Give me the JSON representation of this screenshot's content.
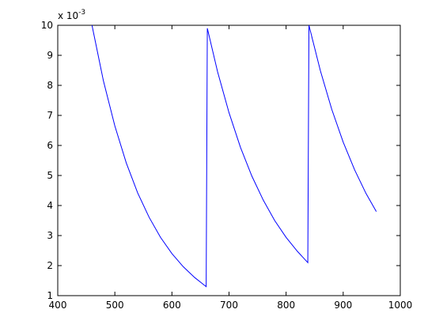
{
  "chart_data": {
    "type": "line",
    "y_multiplier": "x 10",
    "y_multiplier_exponent": "-3",
    "x": [
      460,
      480,
      500,
      520,
      540,
      560,
      580,
      600,
      620,
      640,
      660,
      661,
      662,
      680,
      700,
      720,
      740,
      760,
      780,
      800,
      820,
      838,
      840,
      860,
      880,
      900,
      920,
      940,
      958
    ],
    "series": [
      {
        "color": "#0000ff",
        "values": [
          10,
          8.15,
          6.65,
          5.42,
          4.42,
          3.61,
          2.94,
          2.4,
          1.96,
          1.6,
          1.3,
          5.6,
          9.9,
          8.45,
          7.09,
          5.94,
          4.98,
          4.18,
          3.5,
          2.94,
          2.47,
          2.1,
          10,
          8.49,
          7.2,
          6.11,
          5.19,
          4.4,
          3.8
        ]
      }
    ],
    "xlim": [
      400,
      1000
    ],
    "xticks": [
      400,
      500,
      600,
      700,
      800,
      900,
      1000
    ],
    "ylim": [
      1,
      10
    ],
    "yticks": [
      1,
      2,
      3,
      4,
      5,
      6,
      7,
      8,
      9,
      10
    ]
  }
}
